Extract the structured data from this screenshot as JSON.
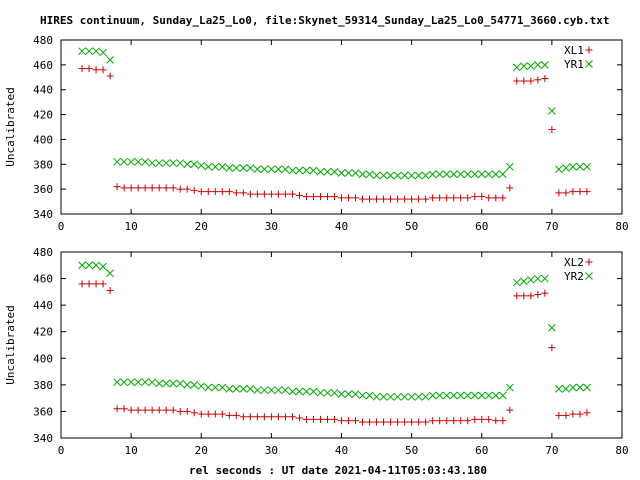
{
  "title": "HIRES continuum, Sunday_La25_Lo0, file:Skynet_59314_Sunday_La25_Lo0_54771_3660.cyb.txt",
  "xlabel": "rel seconds : UT date 2021-04-11T05:03:43.180",
  "chart_data": [
    {
      "type": "scatter",
      "ylabel": "Uncalibrated",
      "xlim": [
        0,
        80
      ],
      "ylim": [
        340,
        480
      ],
      "xticks": [
        0,
        10,
        20,
        30,
        40,
        50,
        60,
        70,
        80
      ],
      "yticks": [
        340,
        360,
        380,
        400,
        420,
        440,
        460,
        480
      ],
      "legend_position": "top-right",
      "grid": false,
      "series": [
        {
          "name": "XL1",
          "marker": "plus",
          "color": "#cc0000",
          "x": [
            3,
            4,
            5,
            6,
            7,
            8,
            9,
            10,
            11,
            12,
            13,
            14,
            15,
            16,
            17,
            18,
            19,
            20,
            21,
            22,
            23,
            24,
            25,
            26,
            27,
            28,
            29,
            30,
            31,
            32,
            33,
            34,
            35,
            36,
            37,
            38,
            39,
            40,
            41,
            42,
            43,
            44,
            45,
            46,
            47,
            48,
            49,
            50,
            51,
            52,
            53,
            54,
            55,
            56,
            57,
            58,
            59,
            60,
            61,
            62,
            63,
            64,
            65,
            66,
            67,
            68,
            69,
            70,
            71,
            72,
            73,
            74,
            75
          ],
          "y": [
            457,
            457,
            456,
            456,
            451,
            362,
            361,
            361,
            361,
            361,
            361,
            361,
            361,
            361,
            360,
            360,
            359,
            358,
            358,
            358,
            358,
            358,
            357,
            357,
            356,
            356,
            356,
            356,
            356,
            356,
            356,
            355,
            354,
            354,
            354,
            354,
            354,
            353,
            353,
            353,
            352,
            352,
            352,
            352,
            352,
            352,
            352,
            352,
            352,
            352,
            353,
            353,
            353,
            353,
            353,
            353,
            354,
            354,
            353,
            353,
            353,
            361,
            447,
            447,
            447,
            448,
            449,
            408,
            357,
            357,
            358,
            358,
            358
          ]
        },
        {
          "name": "YR1",
          "marker": "cross",
          "color": "#00aa00",
          "x": [
            3,
            4,
            5,
            6,
            7,
            8,
            9,
            10,
            11,
            12,
            13,
            14,
            15,
            16,
            17,
            18,
            19,
            20,
            21,
            22,
            23,
            24,
            25,
            26,
            27,
            28,
            29,
            30,
            31,
            32,
            33,
            34,
            35,
            36,
            37,
            38,
            39,
            40,
            41,
            42,
            43,
            44,
            45,
            46,
            47,
            48,
            49,
            50,
            51,
            52,
            53,
            54,
            55,
            56,
            57,
            58,
            59,
            60,
            61,
            62,
            63,
            64,
            65,
            66,
            67,
            68,
            69,
            70,
            71,
            72,
            73,
            74,
            75
          ],
          "y": [
            471,
            471,
            471,
            470,
            464,
            382,
            382,
            382,
            382,
            382,
            381,
            381,
            381,
            381,
            381,
            380,
            380,
            379,
            378,
            378,
            378,
            377,
            377,
            377,
            377,
            376,
            376,
            376,
            376,
            376,
            375,
            375,
            375,
            375,
            374,
            374,
            374,
            373,
            373,
            373,
            372,
            372,
            371,
            371,
            371,
            371,
            371,
            371,
            371,
            371,
            372,
            372,
            372,
            372,
            372,
            372,
            372,
            372,
            372,
            372,
            372,
            378,
            458,
            459,
            459,
            460,
            460,
            423,
            376,
            377,
            378,
            378,
            378
          ]
        }
      ]
    },
    {
      "type": "scatter",
      "ylabel": "Uncalibrated",
      "xlim": [
        0,
        80
      ],
      "ylim": [
        340,
        480
      ],
      "xticks": [
        0,
        10,
        20,
        30,
        40,
        50,
        60,
        70,
        80
      ],
      "yticks": [
        340,
        360,
        380,
        400,
        420,
        440,
        460,
        480
      ],
      "legend_position": "top-right",
      "grid": false,
      "series": [
        {
          "name": "XL2",
          "marker": "plus",
          "color": "#cc0000",
          "x": [
            3,
            4,
            5,
            6,
            7,
            8,
            9,
            10,
            11,
            12,
            13,
            14,
            15,
            16,
            17,
            18,
            19,
            20,
            21,
            22,
            23,
            24,
            25,
            26,
            27,
            28,
            29,
            30,
            31,
            32,
            33,
            34,
            35,
            36,
            37,
            38,
            39,
            40,
            41,
            42,
            43,
            44,
            45,
            46,
            47,
            48,
            49,
            50,
            51,
            52,
            53,
            54,
            55,
            56,
            57,
            58,
            59,
            60,
            61,
            62,
            63,
            64,
            65,
            66,
            67,
            68,
            69,
            70,
            71,
            72,
            73,
            74,
            75
          ],
          "y": [
            456,
            456,
            456,
            456,
            451,
            362,
            362,
            361,
            361,
            361,
            361,
            361,
            361,
            361,
            360,
            360,
            359,
            358,
            358,
            358,
            358,
            357,
            357,
            356,
            356,
            356,
            356,
            356,
            356,
            356,
            356,
            355,
            354,
            354,
            354,
            354,
            354,
            353,
            353,
            353,
            352,
            352,
            352,
            352,
            352,
            352,
            352,
            352,
            352,
            352,
            353,
            353,
            353,
            353,
            353,
            353,
            354,
            354,
            354,
            353,
            353,
            361,
            447,
            447,
            447,
            448,
            449,
            408,
            357,
            357,
            358,
            358,
            359
          ]
        },
        {
          "name": "YR2",
          "marker": "cross",
          "color": "#00aa00",
          "x": [
            3,
            4,
            5,
            6,
            7,
            8,
            9,
            10,
            11,
            12,
            13,
            14,
            15,
            16,
            17,
            18,
            19,
            20,
            21,
            22,
            23,
            24,
            25,
            26,
            27,
            28,
            29,
            30,
            31,
            32,
            33,
            34,
            35,
            36,
            37,
            38,
            39,
            40,
            41,
            42,
            43,
            44,
            45,
            46,
            47,
            48,
            49,
            50,
            51,
            52,
            53,
            54,
            55,
            56,
            57,
            58,
            59,
            60,
            61,
            62,
            63,
            64,
            65,
            66,
            67,
            68,
            69,
            70,
            71,
            72,
            73,
            74,
            75
          ],
          "y": [
            470,
            470,
            470,
            469,
            464,
            382,
            382,
            382,
            382,
            382,
            382,
            381,
            381,
            381,
            381,
            380,
            380,
            379,
            378,
            378,
            378,
            377,
            377,
            377,
            377,
            376,
            376,
            376,
            376,
            376,
            375,
            375,
            375,
            375,
            374,
            374,
            374,
            373,
            373,
            373,
            372,
            372,
            371,
            371,
            371,
            371,
            371,
            371,
            371,
            371,
            372,
            372,
            372,
            372,
            372,
            372,
            372,
            372,
            372,
            372,
            372,
            378,
            457,
            458,
            459,
            460,
            460,
            423,
            377,
            377,
            378,
            378,
            378
          ]
        }
      ]
    }
  ]
}
